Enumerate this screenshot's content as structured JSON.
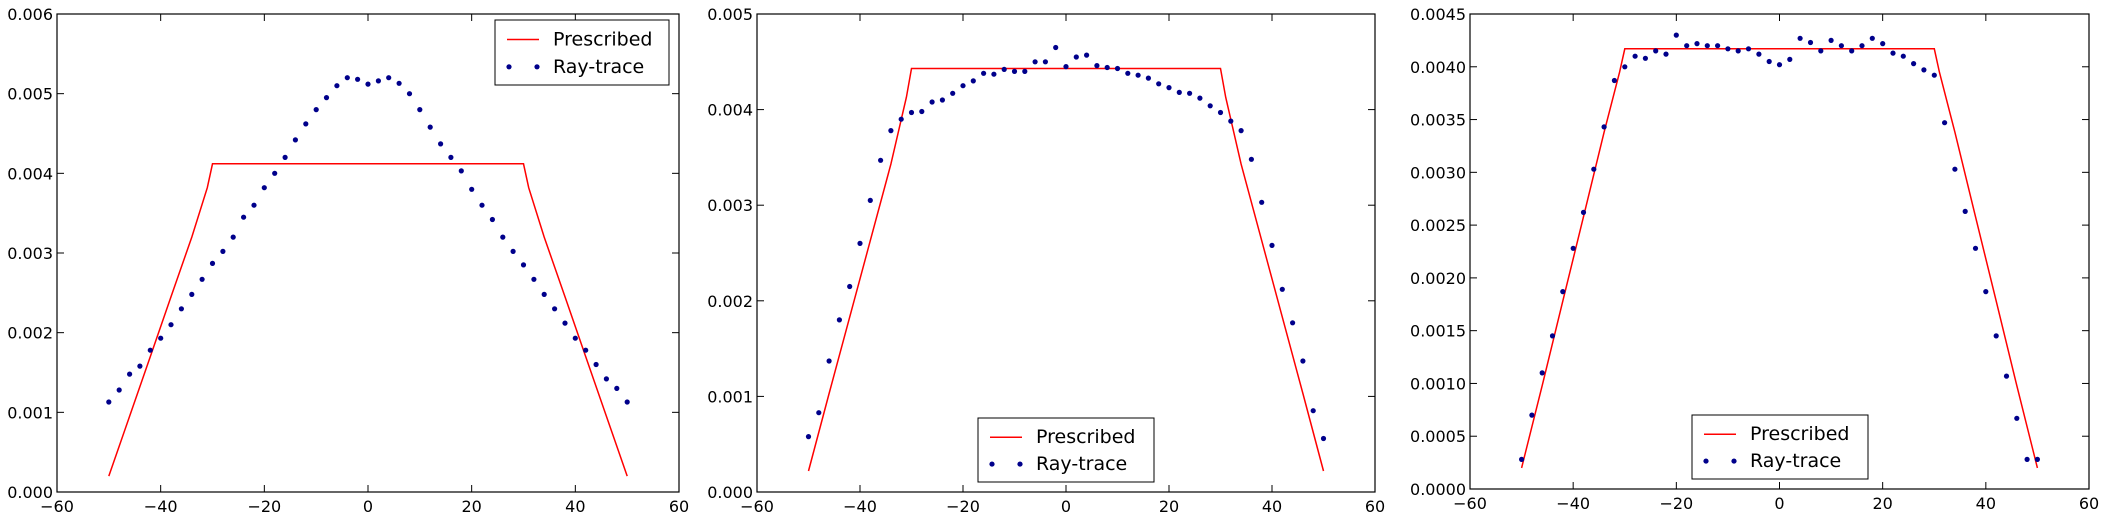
{
  "colors": {
    "prescribed": "#ff0000",
    "raytrace": "#00008b",
    "axes": "#000000",
    "background": "#ffffff"
  },
  "chart_data": [
    {
      "type": "line",
      "xlim": [
        -60,
        60
      ],
      "ylim": [
        0,
        0.006
      ],
      "xticks": [
        "−60",
        "−40",
        "−20",
        "0",
        "20",
        "40",
        "60"
      ],
      "yticks": [
        "0.000",
        "0.001",
        "0.002",
        "0.003",
        "0.004",
        "0.005",
        "0.006"
      ],
      "grid": false,
      "legend": "top-right",
      "series": [
        {
          "name": "Prescribed",
          "style": "line",
          "x": [
            -50,
            -46,
            -42,
            -38,
            -34,
            -31,
            -30,
            30,
            31,
            34,
            38,
            42,
            46,
            50
          ],
          "y": [
            0.0002,
            0.00095,
            0.0017,
            0.00245,
            0.0032,
            0.00382,
            0.00412,
            0.00412,
            0.00382,
            0.0032,
            0.00245,
            0.0017,
            0.00095,
            0.0002
          ]
        },
        {
          "name": "Ray-trace",
          "style": "points",
          "x": [
            -50,
            -48,
            -46,
            -44,
            -42,
            -40,
            -38,
            -36,
            -34,
            -32,
            -30,
            -28,
            -26,
            -24,
            -22,
            -20,
            -18,
            -16,
            -14,
            -12,
            -10,
            -8,
            -6,
            -4,
            -2,
            0,
            2,
            4,
            6,
            8,
            10,
            12,
            14,
            16,
            18,
            20,
            22,
            24,
            26,
            28,
            30,
            32,
            34,
            36,
            38,
            40,
            42,
            44,
            46,
            48,
            50
          ],
          "y": [
            0.00113,
            0.00128,
            0.00148,
            0.00158,
            0.00178,
            0.00193,
            0.0021,
            0.0023,
            0.00248,
            0.00267,
            0.00287,
            0.00302,
            0.0032,
            0.00345,
            0.0036,
            0.00382,
            0.004,
            0.0042,
            0.00442,
            0.00462,
            0.0048,
            0.00495,
            0.0051,
            0.0052,
            0.00518,
            0.00512,
            0.00516,
            0.0052,
            0.00513,
            0.005,
            0.0048,
            0.00458,
            0.00437,
            0.0042,
            0.00403,
            0.0038,
            0.0036,
            0.00342,
            0.0032,
            0.00302,
            0.00285,
            0.00267,
            0.00248,
            0.0023,
            0.00212,
            0.00193,
            0.00178,
            0.0016,
            0.00142,
            0.0013,
            0.00113
          ]
        }
      ]
    },
    {
      "type": "line",
      "xlim": [
        -60,
        60
      ],
      "ylim": [
        0,
        0.005
      ],
      "xticks": [
        "−60",
        "−40",
        "−20",
        "0",
        "20",
        "40",
        "60"
      ],
      "yticks": [
        "0.000",
        "0.001",
        "0.002",
        "0.003",
        "0.004",
        "0.005"
      ],
      "grid": false,
      "legend": "bottom-center",
      "series": [
        {
          "name": "Prescribed",
          "style": "line",
          "x": [
            -50,
            -46,
            -42,
            -38,
            -34,
            -31,
            -30,
            30,
            31,
            34,
            38,
            42,
            46,
            50
          ],
          "y": [
            0.00022,
            0.00103,
            0.00183,
            0.00263,
            0.00343,
            0.00413,
            0.00443,
            0.00443,
            0.00413,
            0.00343,
            0.00263,
            0.00183,
            0.00103,
            0.00022
          ]
        },
        {
          "name": "Ray-trace",
          "style": "points",
          "x": [
            -50,
            -48,
            -46,
            -44,
            -42,
            -40,
            -38,
            -36,
            -34,
            -32,
            -30,
            -28,
            -26,
            -24,
            -22,
            -20,
            -18,
            -16,
            -14,
            -12,
            -10,
            -8,
            -6,
            -4,
            -2,
            0,
            2,
            4,
            6,
            8,
            10,
            12,
            14,
            16,
            18,
            20,
            22,
            24,
            26,
            28,
            30,
            32,
            34,
            36,
            38,
            40,
            42,
            44,
            46,
            48,
            50
          ],
          "y": [
            0.00058,
            0.00083,
            0.00137,
            0.0018,
            0.00215,
            0.0026,
            0.00305,
            0.00347,
            0.00378,
            0.0039,
            0.00397,
            0.00398,
            0.00408,
            0.0041,
            0.00417,
            0.00425,
            0.0043,
            0.00438,
            0.00437,
            0.00442,
            0.0044,
            0.0044,
            0.0045,
            0.0045,
            0.00465,
            0.00445,
            0.00455,
            0.00457,
            0.00446,
            0.00444,
            0.00443,
            0.00438,
            0.00436,
            0.00433,
            0.00427,
            0.00423,
            0.00418,
            0.00417,
            0.00412,
            0.00404,
            0.00397,
            0.00388,
            0.00378,
            0.00348,
            0.00303,
            0.00258,
            0.00212,
            0.00177,
            0.00137,
            0.00085,
            0.00056
          ]
        }
      ]
    },
    {
      "type": "line",
      "xlim": [
        -60,
        60
      ],
      "ylim": [
        0,
        0.0045
      ],
      "xticks": [
        "−60",
        "−40",
        "−20",
        "0",
        "20",
        "40",
        "60"
      ],
      "yticks": [
        "0.0000",
        "0.0005",
        "0.0010",
        "0.0015",
        "0.0020",
        "0.0025",
        "0.0030",
        "0.0035",
        "0.0040",
        "0.0045"
      ],
      "grid": false,
      "legend": "bottom-center",
      "series": [
        {
          "name": "Prescribed",
          "style": "line",
          "x": [
            -50,
            -46,
            -42,
            -38,
            -34,
            -31,
            -30,
            30,
            31,
            34,
            38,
            42,
            46,
            50
          ],
          "y": [
            0.0002,
            0.00098,
            0.00178,
            0.00258,
            0.00338,
            0.00395,
            0.00417,
            0.00417,
            0.00395,
            0.00338,
            0.00258,
            0.00178,
            0.00098,
            0.0002
          ]
        },
        {
          "name": "Ray-trace",
          "style": "points",
          "x": [
            -50,
            -48,
            -46,
            -44,
            -42,
            -40,
            -38,
            -36,
            -34,
            -32,
            -30,
            -28,
            -26,
            -24,
            -22,
            -20,
            -18,
            -16,
            -14,
            -12,
            -10,
            -8,
            -6,
            -4,
            -2,
            0,
            2,
            4,
            6,
            8,
            10,
            12,
            14,
            16,
            18,
            20,
            22,
            24,
            26,
            28,
            30,
            32,
            34,
            36,
            38,
            40,
            42,
            44,
            46,
            48,
            50
          ],
          "y": [
            0.00028,
            0.0007,
            0.0011,
            0.00145,
            0.00187,
            0.00228,
            0.00262,
            0.00303,
            0.00343,
            0.00387,
            0.004,
            0.0041,
            0.00408,
            0.00415,
            0.00412,
            0.0043,
            0.0042,
            0.00422,
            0.0042,
            0.0042,
            0.00417,
            0.00415,
            0.00417,
            0.00412,
            0.00405,
            0.00402,
            0.00407,
            0.00427,
            0.00423,
            0.00415,
            0.00425,
            0.0042,
            0.00415,
            0.0042,
            0.00427,
            0.00422,
            0.00413,
            0.0041,
            0.00403,
            0.00397,
            0.00392,
            0.00347,
            0.00303,
            0.00263,
            0.00228,
            0.00187,
            0.00145,
            0.00107,
            0.00067,
            0.00028,
            0.00028
          ]
        }
      ]
    }
  ]
}
